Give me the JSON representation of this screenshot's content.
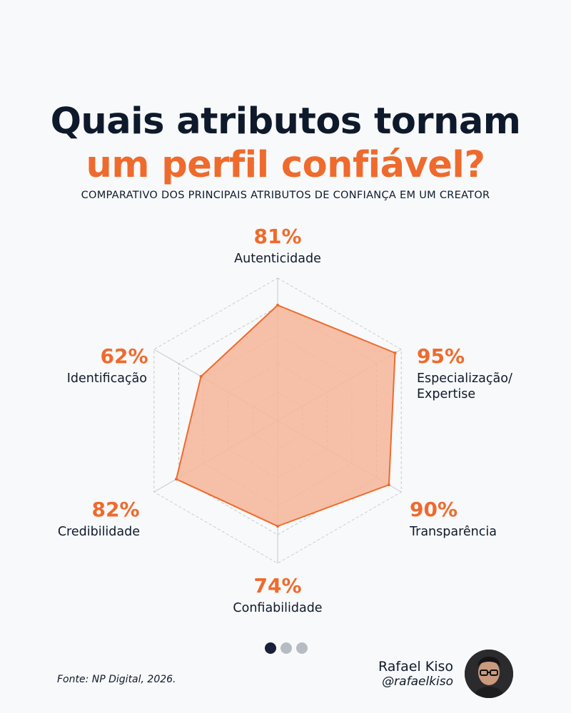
{
  "header": {
    "title_line1": "Quais atributos tornam",
    "title_line2": "um perfil confiável?",
    "subtitle": "COMPARATIVO DOS PRINCIPAIS ATRIBUTOS DE CONFIANÇA EM UM CREATOR"
  },
  "colors": {
    "accent": "#ef6a2d",
    "navy": "#0e1a2c",
    "fill": "#f4b698"
  },
  "chart_data": {
    "type": "radar",
    "categories": [
      "Autenticidade",
      "Especialização/ Expertise",
      "Transparência",
      "Confiabilidade",
      "Credibilidade",
      "Identificação"
    ],
    "values": [
      81,
      95,
      90,
      74,
      82,
      62
    ],
    "value_labels": [
      "81%",
      "95%",
      "90%",
      "74%",
      "82%",
      "62%"
    ],
    "label_lines": [
      [
        "Autenticidade"
      ],
      [
        "Especialização/",
        "Expertise"
      ],
      [
        "Transparência"
      ],
      [
        "Confiabilidade"
      ],
      [
        "Credibilidade"
      ],
      [
        "Identificação"
      ]
    ],
    "range": [
      0,
      100
    ],
    "rings": 5,
    "grid": true
  },
  "pagination": {
    "total": 3,
    "active": 0
  },
  "footer": {
    "source": "Fonte: NP Digital, 2026.",
    "author_name": "Rafael Kiso",
    "author_handle": "@rafaelkiso"
  }
}
